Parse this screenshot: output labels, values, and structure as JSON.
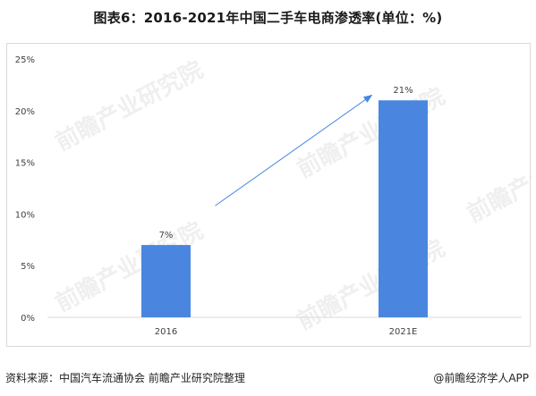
{
  "title": "图表6：2016-2021年中国二手车电商渗透率(单位：%)",
  "source": "资料来源：中国汽车流通协会 前瞻产业研究院整理",
  "credit": "@前瞻经济学人APP",
  "watermark": "前瞻产业研究院",
  "colors": {
    "bar": "#4a86e0",
    "arrow": "#4a86e0",
    "axis": "#d9d9d9",
    "text": "#404040"
  },
  "chart_data": {
    "type": "bar",
    "categories": [
      "2016",
      "2021E"
    ],
    "values": [
      7,
      21
    ],
    "data_labels": [
      "7%",
      "21%"
    ],
    "ylim": [
      0,
      25
    ],
    "yticks": [
      0,
      5,
      10,
      15,
      20,
      25
    ],
    "ytick_labels": [
      "0%",
      "5%",
      "10%",
      "15%",
      "20%",
      "25%"
    ],
    "grid": false,
    "legend": "none",
    "annotation": "arrow from lower-left rising to the 2021E bar"
  }
}
